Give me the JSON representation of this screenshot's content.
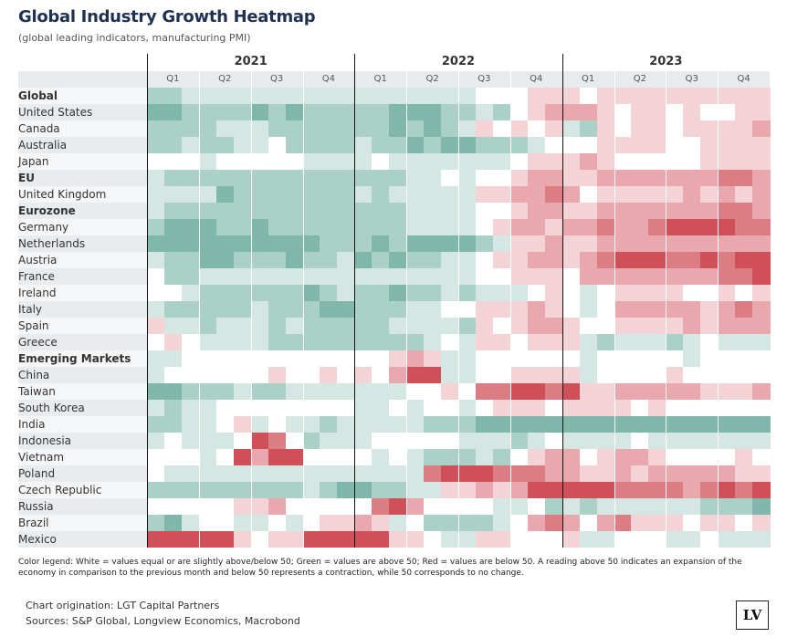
{
  "title": "Global Industry Growth Heatmap",
  "subtitle": "(global leading indicators, manufacturing PMI)",
  "chart_data": {
    "type": "heatmap",
    "title": "Global Industry Growth Heatmap",
    "years": [
      "2021",
      "2022",
      "2023"
    ],
    "quarters": [
      "Q1",
      "Q2",
      "Q3",
      "Q4"
    ],
    "months_per_year": 12,
    "color_scale": {
      "min": -4,
      "max": 4,
      "low_color": "#d0505a",
      "mid_color": "#ffffff",
      "high_color": "#54a08f"
    },
    "rows": [
      {
        "label": "Global",
        "bold": true,
        "values": [
          2,
          2,
          1,
          1,
          1,
          1,
          1,
          1,
          1,
          1,
          1,
          1,
          1,
          1,
          1,
          1,
          1,
          1,
          1,
          0,
          0,
          0,
          -1,
          -1,
          -1,
          0,
          -1,
          -1,
          -1,
          -1,
          -1,
          -1,
          -1,
          -1,
          -1,
          -1
        ]
      },
      {
        "label": "United States",
        "bold": false,
        "values": [
          3,
          3,
          2,
          2,
          2,
          2,
          3,
          2,
          3,
          2,
          2,
          2,
          2,
          2,
          3,
          3,
          3,
          2,
          2,
          1,
          2,
          0,
          -1,
          -2,
          -2,
          -2,
          -1,
          0,
          -1,
          -1,
          0,
          -1,
          0,
          0,
          -1,
          -1
        ]
      },
      {
        "label": "Canada",
        "bold": false,
        "values": [
          2,
          2,
          2,
          2,
          1,
          1,
          1,
          2,
          2,
          2,
          2,
          2,
          2,
          2,
          3,
          2,
          3,
          2,
          1,
          -1,
          0,
          -1,
          0,
          -1,
          1,
          2,
          -1,
          0,
          -1,
          -1,
          0,
          -1,
          -1,
          -1,
          -1,
          -2
        ]
      },
      {
        "label": "Australia",
        "bold": false,
        "values": [
          2,
          2,
          1,
          2,
          2,
          1,
          1,
          0,
          2,
          2,
          2,
          2,
          1,
          2,
          2,
          3,
          2,
          3,
          3,
          2,
          2,
          2,
          1,
          0,
          0,
          0,
          -1,
          -1,
          -1,
          -1,
          0,
          0,
          -1,
          -1,
          -1,
          -1
        ]
      },
      {
        "label": "Japan",
        "bold": false,
        "values": [
          0,
          0,
          0,
          1,
          0,
          0,
          0,
          0,
          0,
          1,
          1,
          1,
          1,
          0,
          1,
          1,
          1,
          1,
          1,
          1,
          1,
          0,
          -1,
          -1,
          -1,
          -2,
          -1,
          0,
          0,
          0,
          0,
          0,
          -1,
          -1,
          -1,
          -1
        ]
      },
      {
        "label": "EU",
        "bold": true,
        "values": [
          1,
          2,
          2,
          2,
          2,
          2,
          2,
          2,
          2,
          2,
          2,
          2,
          2,
          2,
          2,
          1,
          1,
          0,
          1,
          0,
          0,
          -1,
          -2,
          -2,
          -1,
          -1,
          -2,
          -2,
          -2,
          -2,
          -2,
          -2,
          -2,
          -3,
          -3,
          -2
        ]
      },
      {
        "label": "United Kingdom",
        "bold": false,
        "values": [
          1,
          1,
          1,
          1,
          3,
          2,
          2,
          2,
          2,
          2,
          2,
          2,
          1,
          2,
          1,
          1,
          1,
          1,
          1,
          -1,
          -1,
          -2,
          -2,
          -3,
          -2,
          0,
          -1,
          -1,
          -1,
          -1,
          -1,
          -2,
          -1,
          -2,
          -1,
          -2
        ]
      },
      {
        "label": "Eurozone",
        "bold": true,
        "values": [
          1,
          2,
          2,
          2,
          2,
          2,
          2,
          2,
          2,
          2,
          2,
          2,
          2,
          2,
          2,
          1,
          1,
          1,
          1,
          0,
          0,
          -1,
          -2,
          -2,
          -1,
          -1,
          -2,
          -2,
          -2,
          -2,
          -2,
          -2,
          -2,
          -3,
          -3,
          -2
        ]
      },
      {
        "label": "Germany",
        "bold": false,
        "values": [
          2,
          3,
          3,
          3,
          2,
          2,
          3,
          2,
          2,
          2,
          2,
          2,
          2,
          2,
          2,
          1,
          1,
          1,
          1,
          0,
          -1,
          -2,
          -2,
          -1,
          -2,
          -2,
          -3,
          -2,
          -2,
          -3,
          -4,
          -4,
          -4,
          -4,
          -3,
          -3
        ]
      },
      {
        "label": "Netherlands",
        "bold": false,
        "values": [
          3,
          3,
          3,
          3,
          3,
          3,
          3,
          3,
          3,
          3,
          2,
          2,
          2,
          3,
          2,
          3,
          3,
          3,
          3,
          2,
          1,
          -1,
          -1,
          -2,
          -1,
          -1,
          -2,
          -2,
          -2,
          -2,
          -2,
          -2,
          -2,
          -2,
          -2,
          -2
        ]
      },
      {
        "label": "Austria",
        "bold": false,
        "values": [
          1,
          2,
          2,
          3,
          3,
          2,
          2,
          2,
          3,
          2,
          2,
          1,
          3,
          2,
          3,
          2,
          2,
          1,
          1,
          0,
          -1,
          -1,
          -2,
          -2,
          -1,
          -2,
          -3,
          -4,
          -4,
          -4,
          -3,
          -3,
          -4,
          -3,
          -4,
          -4
        ]
      },
      {
        "label": "France",
        "bold": false,
        "values": [
          0,
          2,
          2,
          1,
          1,
          1,
          1,
          1,
          1,
          1,
          1,
          1,
          1,
          1,
          1,
          1,
          1,
          1,
          1,
          0,
          0,
          -1,
          -1,
          -1,
          0,
          -2,
          -2,
          -2,
          -2,
          -2,
          -2,
          -2,
          -2,
          -3,
          -3,
          -4
        ]
      },
      {
        "label": "Ireland",
        "bold": false,
        "values": [
          0,
          0,
          1,
          2,
          2,
          2,
          2,
          2,
          2,
          3,
          2,
          1,
          2,
          2,
          3,
          2,
          2,
          1,
          2,
          1,
          1,
          1,
          0,
          -1,
          0,
          1,
          0,
          -1,
          -1,
          -1,
          -1,
          0,
          0,
          -1,
          0,
          -1
        ]
      },
      {
        "label": "Italy",
        "bold": false,
        "values": [
          1,
          2,
          2,
          2,
          2,
          2,
          1,
          2,
          2,
          2,
          3,
          3,
          2,
          2,
          2,
          1,
          1,
          0,
          0,
          -1,
          -1,
          -1,
          -2,
          -1,
          0,
          1,
          0,
          -2,
          -2,
          -2,
          -2,
          -2,
          -1,
          -2,
          -3,
          -2
        ]
      },
      {
        "label": "Spain",
        "bold": false,
        "values": [
          -1,
          1,
          1,
          2,
          1,
          1,
          1,
          2,
          1,
          2,
          2,
          2,
          2,
          2,
          1,
          1,
          1,
          1,
          2,
          -1,
          0,
          -1,
          -2,
          -2,
          -1,
          0,
          0,
          -1,
          -1,
          -1,
          -1,
          -2,
          -1,
          -2,
          -2,
          -2
        ]
      },
      {
        "label": "Greece",
        "bold": false,
        "values": [
          0,
          -1,
          0,
          1,
          1,
          1,
          1,
          2,
          2,
          2,
          2,
          2,
          2,
          2,
          2,
          2,
          1,
          0,
          1,
          -1,
          -1,
          0,
          -1,
          -1,
          -1,
          1,
          2,
          1,
          1,
          1,
          2,
          1,
          0,
          1,
          1,
          1
        ]
      },
      {
        "label": "Emerging Markets",
        "bold": true,
        "values": [
          1,
          1,
          0,
          0,
          0,
          0,
          0,
          0,
          0,
          0,
          0,
          0,
          0,
          0,
          -1,
          -2,
          -1,
          1,
          1,
          0,
          0,
          0,
          0,
          0,
          0,
          1,
          0,
          0,
          0,
          0,
          0,
          1,
          0,
          0,
          0,
          0
        ]
      },
      {
        "label": "China",
        "bold": false,
        "values": [
          1,
          0,
          0,
          0,
          0,
          0,
          0,
          -1,
          0,
          0,
          -1,
          0,
          -1,
          0,
          -2,
          -4,
          -4,
          1,
          1,
          0,
          0,
          -1,
          -1,
          -1,
          -1,
          1,
          0,
          0,
          0,
          0,
          -1,
          0,
          0,
          0,
          0,
          0
        ]
      },
      {
        "label": "Taiwan",
        "bold": false,
        "values": [
          3,
          3,
          2,
          2,
          2,
          1,
          2,
          2,
          1,
          1,
          1,
          1,
          1,
          1,
          1,
          0,
          0,
          -1,
          0,
          -3,
          -3,
          -4,
          -4,
          -3,
          -4,
          -1,
          -1,
          -2,
          -2,
          -2,
          -2,
          -2,
          -1,
          -1,
          -1,
          -2
        ]
      },
      {
        "label": "South Korea",
        "bold": false,
        "values": [
          1,
          2,
          1,
          1,
          0,
          0,
          0,
          0,
          0,
          0,
          0,
          0,
          1,
          1,
          0,
          1,
          0,
          0,
          1,
          0,
          -1,
          -1,
          -1,
          0,
          -1,
          -1,
          -1,
          -1,
          0,
          -1,
          0,
          0,
          0,
          0,
          0,
          0
        ]
      },
      {
        "label": "India",
        "bold": false,
        "values": [
          2,
          2,
          1,
          1,
          0,
          -1,
          1,
          0,
          1,
          1,
          2,
          1,
          1,
          1,
          1,
          1,
          2,
          2,
          2,
          3,
          3,
          3,
          3,
          3,
          3,
          3,
          3,
          3,
          3,
          3,
          3,
          3,
          3,
          3,
          3,
          3
        ]
      },
      {
        "label": "Indonesia",
        "bold": false,
        "values": [
          1,
          0,
          1,
          1,
          1,
          0,
          -4,
          -3,
          0,
          2,
          1,
          1,
          1,
          0,
          0,
          0,
          0,
          0,
          1,
          1,
          1,
          2,
          1,
          0,
          1,
          1,
          1,
          1,
          0,
          1,
          1,
          1,
          1,
          1,
          1,
          1
        ]
      },
      {
        "label": "Vietnam",
        "bold": false,
        "values": [
          0,
          0,
          0,
          1,
          0,
          -4,
          -2,
          -4,
          -4,
          0,
          0,
          0,
          0,
          1,
          0,
          1,
          2,
          2,
          2,
          1,
          2,
          0,
          -1,
          -2,
          -2,
          0,
          -1,
          -2,
          -2,
          -1,
          0,
          0,
          0,
          0,
          -1,
          0
        ]
      },
      {
        "label": "Poland",
        "bold": false,
        "values": [
          0,
          1,
          1,
          1,
          1,
          1,
          1,
          1,
          1,
          1,
          1,
          1,
          1,
          1,
          1,
          1,
          -3,
          -4,
          -4,
          -4,
          -3,
          -3,
          -3,
          -2,
          -2,
          -1,
          -1,
          -2,
          -1,
          -2,
          -2,
          -2,
          -2,
          -2,
          -1,
          -1
        ]
      },
      {
        "label": "Czech Republic",
        "bold": false,
        "values": [
          2,
          2,
          2,
          2,
          2,
          2,
          2,
          2,
          2,
          1,
          2,
          3,
          3,
          2,
          2,
          1,
          1,
          -1,
          -1,
          -2,
          -1,
          -2,
          -4,
          -4,
          -4,
          -4,
          -4,
          -3,
          -3,
          -3,
          -3,
          -2,
          -3,
          -4,
          -3,
          -4
        ]
      },
      {
        "label": "Russia",
        "bold": false,
        "values": [
          0,
          0,
          0,
          0,
          0,
          -1,
          -1,
          -2,
          0,
          0,
          0,
          0,
          0,
          -3,
          -4,
          -2,
          0,
          0,
          0,
          0,
          1,
          1,
          0,
          2,
          1,
          2,
          1,
          1,
          1,
          1,
          1,
          1,
          2,
          2,
          2,
          3
        ]
      },
      {
        "label": "Brazil",
        "bold": false,
        "values": [
          2,
          3,
          1,
          0,
          0,
          1,
          1,
          0,
          1,
          0,
          -1,
          -1,
          -2,
          -1,
          1,
          0,
          2,
          2,
          2,
          2,
          1,
          0,
          -2,
          -3,
          -2,
          0,
          -2,
          -3,
          -1,
          -1,
          -1,
          0,
          -1,
          -1,
          0,
          -1
        ]
      },
      {
        "label": "Mexico",
        "bold": false,
        "values": [
          -4,
          -4,
          -4,
          -4,
          -4,
          -1,
          0,
          -1,
          -1,
          -4,
          -4,
          -4,
          -4,
          -4,
          -1,
          -1,
          0,
          1,
          1,
          -1,
          -1,
          0,
          0,
          0,
          -1,
          1,
          1,
          0,
          0,
          0,
          1,
          1,
          0,
          1,
          1,
          1
        ]
      }
    ]
  },
  "legend_text": "Color legend: White = values equal or are slightly above/below 50; Green = values are above 50; Red = values are below 50. A reading above 50 indicates an expansion of the economy in comparison to the previous month and below 50 represents a contraction, while 50 corresponds to no change.",
  "footer": {
    "origination": "Chart origination: LGT Capital Partners",
    "sources": "Sources: S&P Global, Longview Economics, Macrobond",
    "logo": "LV"
  }
}
